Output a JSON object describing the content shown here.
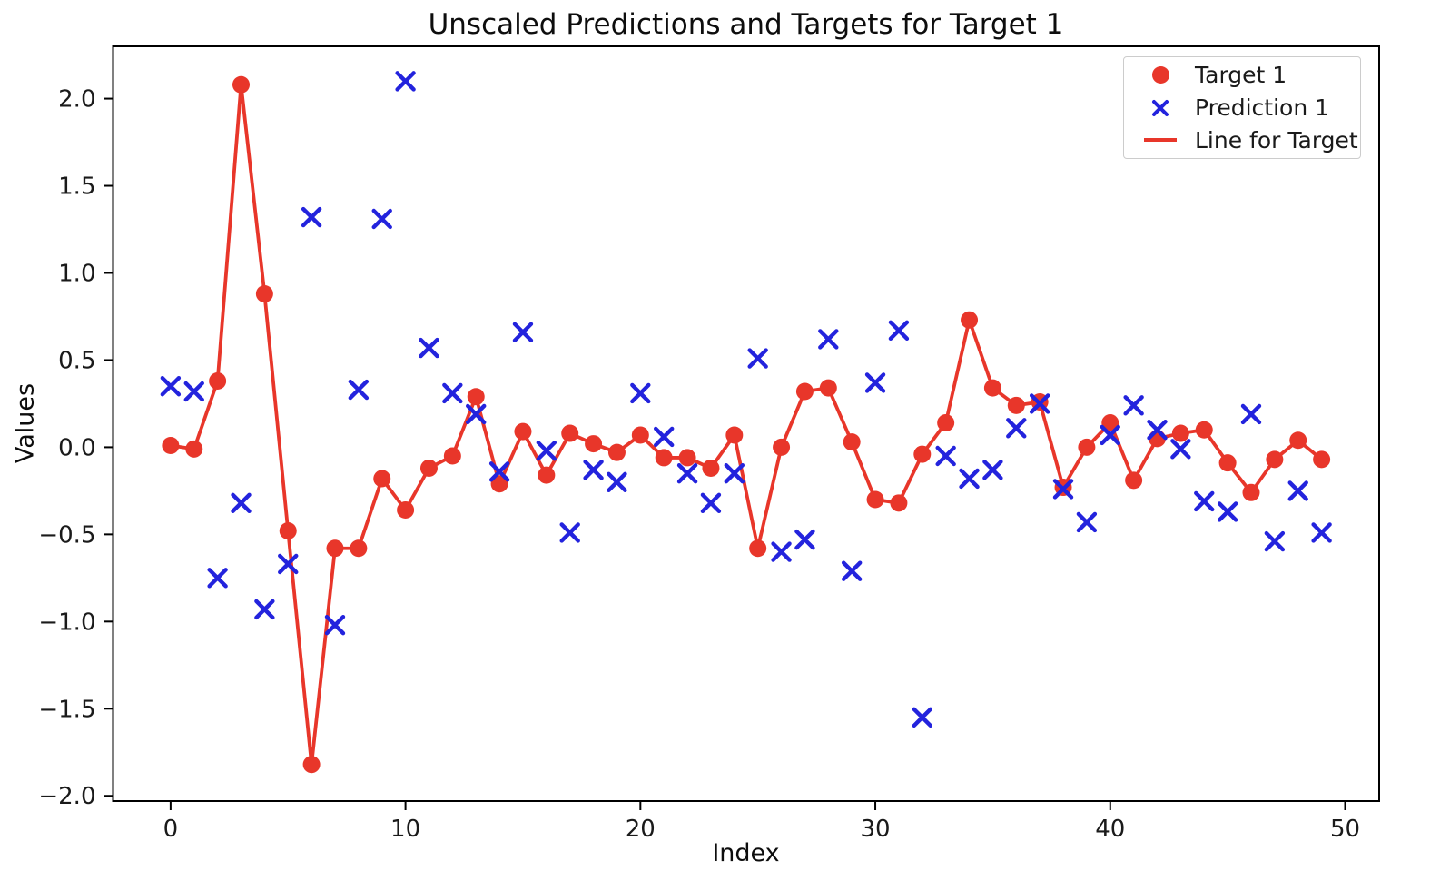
{
  "figure": {
    "title": "Unscaled Predictions and Targets for Target 1",
    "xlabel": "Index",
    "ylabel": "Values"
  },
  "legend": {
    "position": "upper right",
    "items": [
      {
        "label": "Target 1",
        "marker": "dot",
        "color": "#e8362a"
      },
      {
        "label": "Prediction 1",
        "marker": "x",
        "color": "#2323dd"
      },
      {
        "label": "Line for Target",
        "marker": "line",
        "color": "#e8362a"
      }
    ]
  },
  "chart_data": {
    "type": "line+scatter",
    "title": "Unscaled Predictions and Targets for Target 1",
    "xlabel": "Index",
    "ylabel": "Values",
    "grid": false,
    "legend_position": "upper right",
    "xlim": [
      -2.45,
      51.45
    ],
    "ylim": [
      -2.03,
      2.3
    ],
    "xticks": {
      "values": [
        0,
        10,
        20,
        30,
        40,
        50
      ],
      "labels": [
        "0",
        "10",
        "20",
        "30",
        "40",
        "50"
      ]
    },
    "yticks": {
      "values": [
        -2.0,
        -1.5,
        -1.0,
        -0.5,
        0.0,
        0.5,
        1.0,
        1.5,
        2.0
      ],
      "labels": [
        "−2.0",
        "−1.5",
        "−1.0",
        "−0.5",
        "0.0",
        "0.5",
        "1.0",
        "1.5",
        "2.0"
      ]
    },
    "x": [
      0,
      1,
      2,
      3,
      4,
      5,
      6,
      7,
      8,
      9,
      10,
      11,
      12,
      13,
      14,
      15,
      16,
      17,
      18,
      19,
      20,
      21,
      22,
      23,
      24,
      25,
      26,
      27,
      28,
      29,
      30,
      31,
      32,
      33,
      34,
      35,
      36,
      37,
      38,
      39,
      40,
      41,
      42,
      43,
      44,
      45,
      46,
      47,
      48,
      49
    ],
    "series": [
      {
        "name": "Target 1",
        "style": "line-with-circle-markers",
        "color": "#e8362a",
        "values": [
          0.01,
          -0.01,
          0.38,
          2.08,
          0.88,
          -0.48,
          -1.82,
          -0.58,
          -0.58,
          -0.18,
          -0.36,
          -0.12,
          -0.05,
          0.29,
          -0.21,
          0.09,
          -0.16,
          0.08,
          0.02,
          -0.03,
          0.07,
          -0.06,
          -0.06,
          -0.12,
          0.07,
          -0.58,
          0.0,
          0.32,
          0.34,
          0.03,
          -0.3,
          -0.32,
          -0.04,
          0.14,
          0.73,
          0.34,
          0.24,
          0.26,
          -0.23,
          0.0,
          0.14,
          -0.19,
          0.05,
          0.08,
          0.1,
          -0.09,
          -0.26,
          -0.07,
          0.04,
          -0.07
        ]
      },
      {
        "name": "Prediction 1",
        "style": "scatter-x-markers",
        "color": "#2323dd",
        "values": [
          0.35,
          0.32,
          -0.75,
          -0.32,
          -0.93,
          -0.67,
          1.32,
          -1.02,
          0.33,
          1.31,
          2.1,
          0.57,
          0.31,
          0.19,
          -0.14,
          0.66,
          -0.02,
          -0.49,
          -0.13,
          -0.2,
          0.31,
          0.06,
          -0.15,
          -0.32,
          -0.15,
          0.51,
          -0.6,
          -0.53,
          0.62,
          -0.71,
          0.37,
          0.67,
          -1.55,
          -0.05,
          -0.18,
          -0.13,
          0.11,
          0.25,
          -0.24,
          -0.43,
          0.07,
          0.24,
          0.1,
          -0.01,
          -0.31,
          -0.37,
          0.19,
          -0.54,
          -0.25,
          -0.49
        ]
      }
    ]
  }
}
